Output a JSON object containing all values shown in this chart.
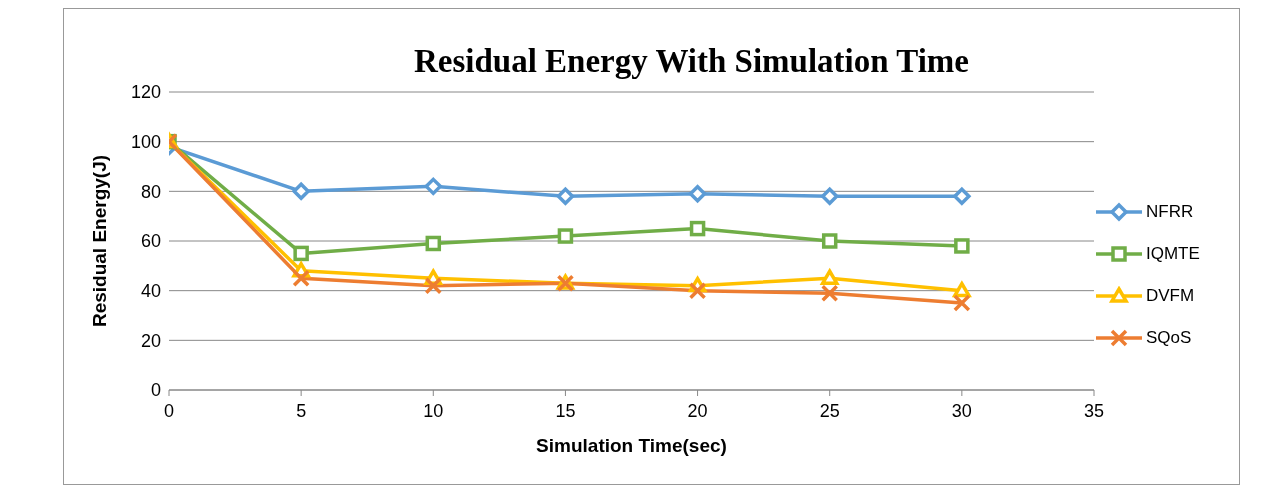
{
  "chart_data": {
    "type": "line",
    "title": "Residual Energy With Simulation Time",
    "xlabel": "Simulation Time(sec)",
    "ylabel": "Residual Energy(J)",
    "x": [
      0,
      5,
      10,
      15,
      20,
      25,
      30
    ],
    "series": [
      {
        "name": "NFRR",
        "color": "#5b9bd5",
        "marker": "diamond",
        "values": [
          98,
          80,
          82,
          78,
          79,
          78,
          78
        ]
      },
      {
        "name": "IQMTE",
        "color": "#70ad47",
        "marker": "square",
        "values": [
          100,
          55,
          59,
          62,
          65,
          60,
          58
        ]
      },
      {
        "name": "DVFM",
        "color": "#ffc000",
        "marker": "triangle",
        "values": [
          100,
          48,
          45,
          43,
          42,
          45,
          40
        ]
      },
      {
        "name": "SQoS",
        "color": "#ed7d31",
        "marker": "cross",
        "values": [
          100,
          45,
          42,
          43,
          40,
          39,
          35
        ]
      }
    ],
    "xlim": [
      0,
      35
    ],
    "xticks": [
      0,
      5,
      10,
      15,
      20,
      25,
      30,
      35
    ],
    "ylim": [
      0,
      120
    ],
    "yticks": [
      0,
      20,
      40,
      60,
      80,
      100,
      120
    ],
    "grid": "y",
    "legend": "right"
  }
}
